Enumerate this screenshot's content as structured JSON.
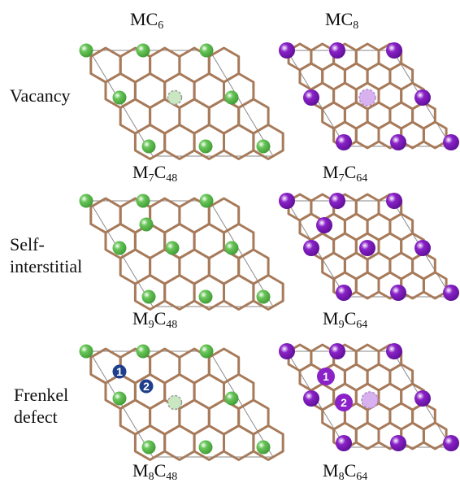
{
  "header": {
    "col1": {
      "base": "MC",
      "sub": "6"
    },
    "col2": {
      "base": "MC",
      "sub": "8"
    }
  },
  "rows": [
    {
      "label_lines": [
        "Vacancy"
      ],
      "formula_left": {
        "a": "M",
        "a_sub": "7",
        "b": "C",
        "b_sub": "48"
      },
      "formula_right": {
        "a": "M",
        "a_sub": "7",
        "b": "C",
        "b_sub": "64"
      }
    },
    {
      "label_lines": [
        "Self-",
        "interstitial"
      ],
      "formula_left": {
        "a": "M",
        "a_sub": "9",
        "b": "C",
        "b_sub": "48"
      },
      "formula_right": {
        "a": "M",
        "a_sub": "9",
        "b": "C",
        "b_sub": "64"
      }
    },
    {
      "label_lines": [
        "Frenkel",
        "defect"
      ],
      "formula_left": {
        "a": "M",
        "a_sub": "8",
        "b": "C",
        "b_sub": "48"
      },
      "formula_right": {
        "a": "M",
        "a_sub": "8",
        "b": "C",
        "b_sub": "64"
      }
    }
  ],
  "markers": [
    "1",
    "2"
  ],
  "colors": {
    "bond": "#a77a5a",
    "cell": "#8a8a8a",
    "green_atom": "#69c659",
    "green_atom_dark": "#3f9a35",
    "purple_atom": "#8a22c8",
    "purple_atom_dark": "#5e0f96",
    "vacancy_green": "#c9e7c0",
    "vacancy_purple": "#d7b2ee",
    "marker_fill_green": "#1f3f8c"
  }
}
